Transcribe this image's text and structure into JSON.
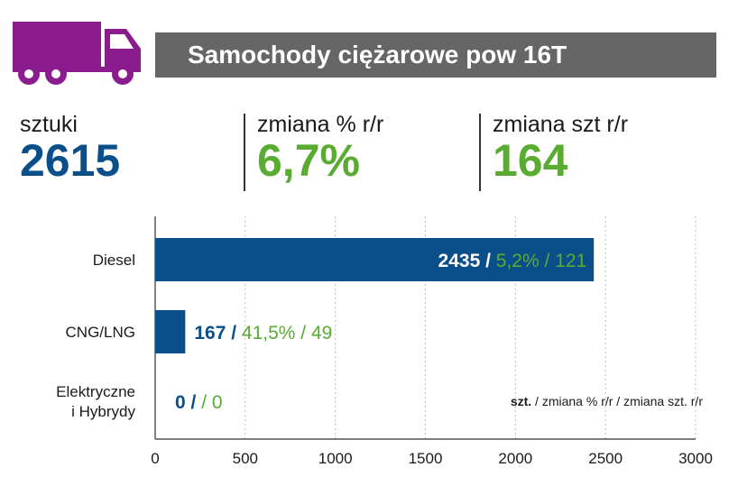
{
  "header": {
    "title": "Samochody ciężarowe pow 16T",
    "icon": "truck-icon",
    "icon_color": "#8a1c8e",
    "band_color": "#666666"
  },
  "kpis": [
    {
      "label": "sztuki",
      "value": "2615",
      "color": "#0b4f8a"
    },
    {
      "label": "zmiana % r/r",
      "value": "6,7%",
      "color": "#5aab32"
    },
    {
      "label": "zmiana szt r/r",
      "value": "164",
      "color": "#5aab32"
    }
  ],
  "chart_data": {
    "type": "bar",
    "orientation": "horizontal",
    "categories": [
      "Diesel",
      "CNG/LNG",
      "Elektryczne i Hybrydy"
    ],
    "category_lines": [
      [
        "Diesel"
      ],
      [
        "CNG/LNG"
      ],
      [
        "Elektryczne",
        "i Hybrydy"
      ]
    ],
    "values": [
      2435,
      167,
      0
    ],
    "annotations": [
      {
        "units": "2435 /",
        "pct": "5,2% / 121"
      },
      {
        "units": "167 /",
        "pct": "41,5% / 49"
      },
      {
        "units": "0 /",
        "pct": "/ 0"
      }
    ],
    "xlim": [
      0,
      3000
    ],
    "xticks": [
      0,
      500,
      1000,
      1500,
      2000,
      2500,
      3000
    ],
    "grid": "vertical dashed",
    "legend": {
      "bold": "szt.",
      "rest": " / zmiana % r/r / zmiana szt. r/r"
    },
    "colors": {
      "bar": "#0b4f8a",
      "units": "#0b4f8a",
      "pct": "#5aab32",
      "units_inside": "#ffffff"
    }
  }
}
